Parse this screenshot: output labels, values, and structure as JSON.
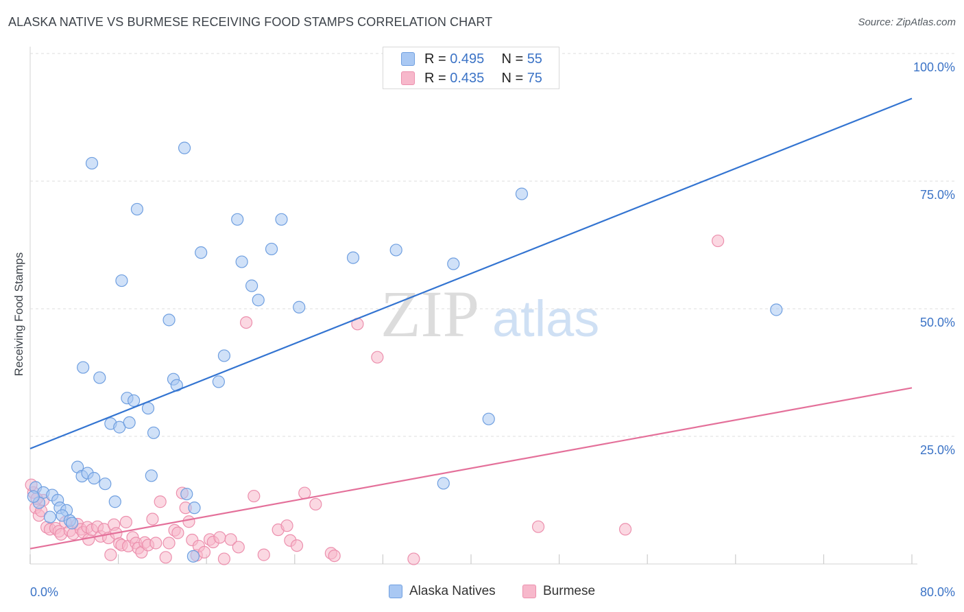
{
  "title": "ALASKA NATIVE VS BURMESE RECEIVING FOOD STAMPS CORRELATION CHART",
  "source": "Source: ZipAtlas.com",
  "watermark": {
    "zip": "ZIP",
    "atlas": "atlas"
  },
  "stats": {
    "alaska": {
      "r_label": "R = ",
      "r_value": "0.495",
      "n_label": "N = ",
      "n_value": "55"
    },
    "burmese": {
      "r_label": "R = ",
      "r_value": "0.435",
      "n_label": "N = ",
      "n_value": "75"
    }
  },
  "legend": {
    "alaska": "Alaska Natives",
    "burmese": "Burmese"
  },
  "colors": {
    "alaska_fill": "#a9c8f3",
    "alaska_stroke": "#6f9fe0",
    "alaska_line": "#3374d1",
    "burmese_fill": "#f7b8cb",
    "burmese_stroke": "#ec8fad",
    "burmese_line": "#e4709a",
    "tick_label": "#3b73c6",
    "grid": "#dddddd"
  },
  "chart_data": {
    "type": "scatter",
    "title": "ALASKA NATIVE VS BURMESE RECEIVING FOOD STAMPS CORRELATION CHART",
    "xlabel": "",
    "ylabel": "Receiving Food Stamps",
    "xlim": [
      0,
      80
    ],
    "ylim": [
      0,
      100
    ],
    "x_tick_labels": [
      "0.0%",
      "80.0%"
    ],
    "y_ticks": [
      {
        "value": 100,
        "label": "100.0%"
      },
      {
        "value": 75,
        "label": "75.0%"
      },
      {
        "value": 50,
        "label": "50.0%"
      },
      {
        "value": 25,
        "label": "25.0%"
      }
    ],
    "series": [
      {
        "name": "Alaska Natives",
        "r": 0.495,
        "n": 55,
        "trend": {
          "x": [
            0,
            80
          ],
          "y": [
            22.6,
            91.2
          ]
        },
        "points": [
          [
            0.5,
            15
          ],
          [
            1.2,
            14
          ],
          [
            0.8,
            12
          ],
          [
            2,
            13.5
          ],
          [
            2.5,
            12.5
          ],
          [
            2.7,
            11
          ],
          [
            3.3,
            10.5
          ],
          [
            1.8,
            9.2
          ],
          [
            2.9,
            9.5
          ],
          [
            3.6,
            8.5
          ],
          [
            3.8,
            8
          ],
          [
            4.3,
            19
          ],
          [
            4.7,
            17.2
          ],
          [
            5.2,
            17.8
          ],
          [
            5.8,
            16.8
          ],
          [
            6.8,
            15.7
          ],
          [
            7.7,
            12.2
          ],
          [
            11,
            17.3
          ],
          [
            14.2,
            13.7
          ],
          [
            14.9,
            11
          ],
          [
            14.8,
            1.5
          ],
          [
            4.8,
            38.5
          ],
          [
            5.6,
            78.5
          ],
          [
            6.3,
            36.5
          ],
          [
            7.3,
            27.5
          ],
          [
            8.1,
            26.8
          ],
          [
            8.3,
            55.5
          ],
          [
            8.8,
            32.5
          ],
          [
            9,
            27.7
          ],
          [
            9.4,
            32
          ],
          [
            9.7,
            69.5
          ],
          [
            10.7,
            30.5
          ],
          [
            11.2,
            25.7
          ],
          [
            12.6,
            47.8
          ],
          [
            13,
            36.2
          ],
          [
            13.3,
            35
          ],
          [
            14,
            81.5
          ],
          [
            15.5,
            61
          ],
          [
            17.1,
            35.7
          ],
          [
            17.6,
            40.8
          ],
          [
            18.8,
            67.5
          ],
          [
            19.2,
            59.2
          ],
          [
            20.1,
            54.5
          ],
          [
            20.7,
            51.7
          ],
          [
            21.9,
            61.7
          ],
          [
            22.8,
            67.5
          ],
          [
            24.4,
            50.3
          ],
          [
            29.3,
            60
          ],
          [
            33.2,
            61.5
          ],
          [
            37.5,
            15.8
          ],
          [
            38.4,
            58.8
          ],
          [
            41.6,
            28.4
          ],
          [
            44.6,
            72.5
          ],
          [
            67.7,
            49.8
          ],
          [
            0.3,
            13.2
          ]
        ]
      },
      {
        "name": "Burmese",
        "r": 0.435,
        "n": 75,
        "trend": {
          "x": [
            0,
            80
          ],
          "y": [
            3.0,
            34.5
          ]
        },
        "points": [
          [
            0.3,
            14
          ],
          [
            0.5,
            11
          ],
          [
            0.8,
            9.5
          ],
          [
            1.2,
            12.5
          ],
          [
            1.5,
            7.2
          ],
          [
            1.8,
            6.8
          ],
          [
            2.3,
            7
          ],
          [
            2.6,
            6.4
          ],
          [
            2.8,
            5.8
          ],
          [
            3.2,
            8.2
          ],
          [
            3.6,
            6.5
          ],
          [
            3.9,
            5.9
          ],
          [
            4.3,
            7.8
          ],
          [
            4.6,
            6.8
          ],
          [
            4.8,
            6.2
          ],
          [
            5.2,
            7.2
          ],
          [
            5.3,
            4.8
          ],
          [
            5.6,
            6.7
          ],
          [
            6.1,
            7.3
          ],
          [
            6.4,
            5.4
          ],
          [
            6.7,
            6.8
          ],
          [
            7.1,
            5.1
          ],
          [
            7.3,
            1.8
          ],
          [
            7.6,
            7.7
          ],
          [
            7.8,
            6
          ],
          [
            8.1,
            4
          ],
          [
            8.3,
            3.7
          ],
          [
            8.7,
            8.2
          ],
          [
            8.9,
            3.5
          ],
          [
            9.3,
            5.2
          ],
          [
            9.6,
            4.1
          ],
          [
            9.8,
            3.1
          ],
          [
            10.1,
            2.3
          ],
          [
            10.4,
            4.2
          ],
          [
            10.7,
            3.7
          ],
          [
            11.1,
            8.8
          ],
          [
            11.4,
            4.1
          ],
          [
            11.8,
            12.2
          ],
          [
            12.3,
            1.3
          ],
          [
            12.6,
            4.1
          ],
          [
            13.1,
            6.6
          ],
          [
            13.4,
            6.1
          ],
          [
            13.8,
            13.9
          ],
          [
            14.1,
            11
          ],
          [
            14.4,
            8.3
          ],
          [
            14.7,
            4.7
          ],
          [
            15.1,
            1.7
          ],
          [
            15.3,
            3.5
          ],
          [
            15.8,
            2.3
          ],
          [
            16.3,
            4.8
          ],
          [
            16.6,
            4.3
          ],
          [
            17.2,
            5.2
          ],
          [
            17.6,
            1
          ],
          [
            18.2,
            4.8
          ],
          [
            18.9,
            3.3
          ],
          [
            19.6,
            47.3
          ],
          [
            20.3,
            13.3
          ],
          [
            21.2,
            1.8
          ],
          [
            22.5,
            6.7
          ],
          [
            23.3,
            7.5
          ],
          [
            23.6,
            4.6
          ],
          [
            24.2,
            3.6
          ],
          [
            24.9,
            13.9
          ],
          [
            25.9,
            11.7
          ],
          [
            27.3,
            2.1
          ],
          [
            27.6,
            1.6
          ],
          [
            29.7,
            47
          ],
          [
            31.5,
            40.5
          ],
          [
            34.8,
            1
          ],
          [
            46.1,
            7.3
          ],
          [
            54,
            6.8
          ],
          [
            62.4,
            63.3
          ],
          [
            0.1,
            15.5
          ],
          [
            0.6,
            12.8
          ],
          [
            1.0,
            10.4
          ]
        ]
      }
    ]
  }
}
